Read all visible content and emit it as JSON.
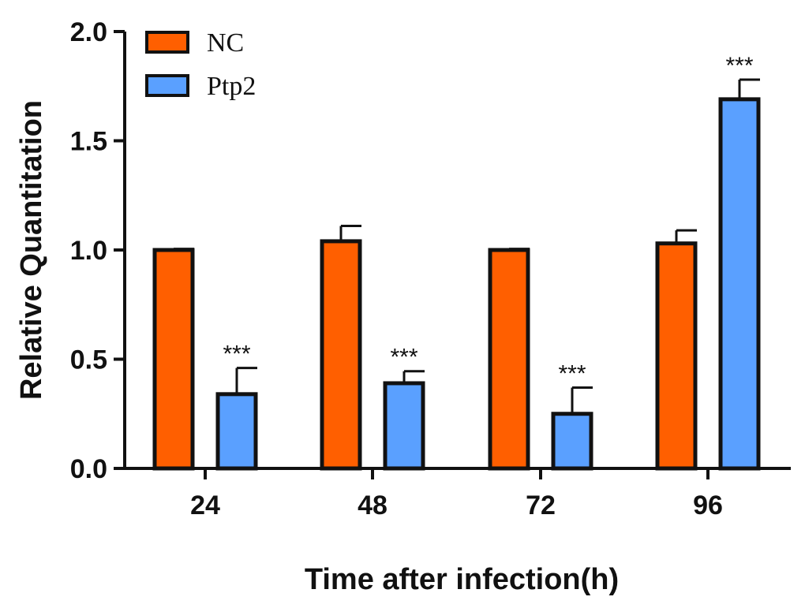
{
  "chart_data": {
    "type": "bar",
    "title": "",
    "xlabel": "Time after infection(h)",
    "ylabel": "Relative Quantitation",
    "categories": [
      "24",
      "48",
      "72",
      "96"
    ],
    "ylim": [
      0,
      2.0
    ],
    "yticks": [
      "0.0",
      "0.5",
      "1.0",
      "1.5",
      "2.0"
    ],
    "legend_position": "top-left",
    "series": [
      {
        "name": "NC",
        "color": "#ff5f00",
        "values": [
          1.0,
          1.04,
          1.0,
          1.03
        ],
        "errors": [
          0.005,
          0.07,
          0.005,
          0.06
        ],
        "significance": [
          "",
          "",
          "",
          ""
        ]
      },
      {
        "name": "Ptp2",
        "color": "#5aa0ff",
        "values": [
          0.34,
          0.39,
          0.25,
          1.69
        ],
        "errors": [
          0.12,
          0.055,
          0.12,
          0.09
        ],
        "significance": [
          "***",
          "***",
          "***",
          "***"
        ]
      }
    ]
  }
}
